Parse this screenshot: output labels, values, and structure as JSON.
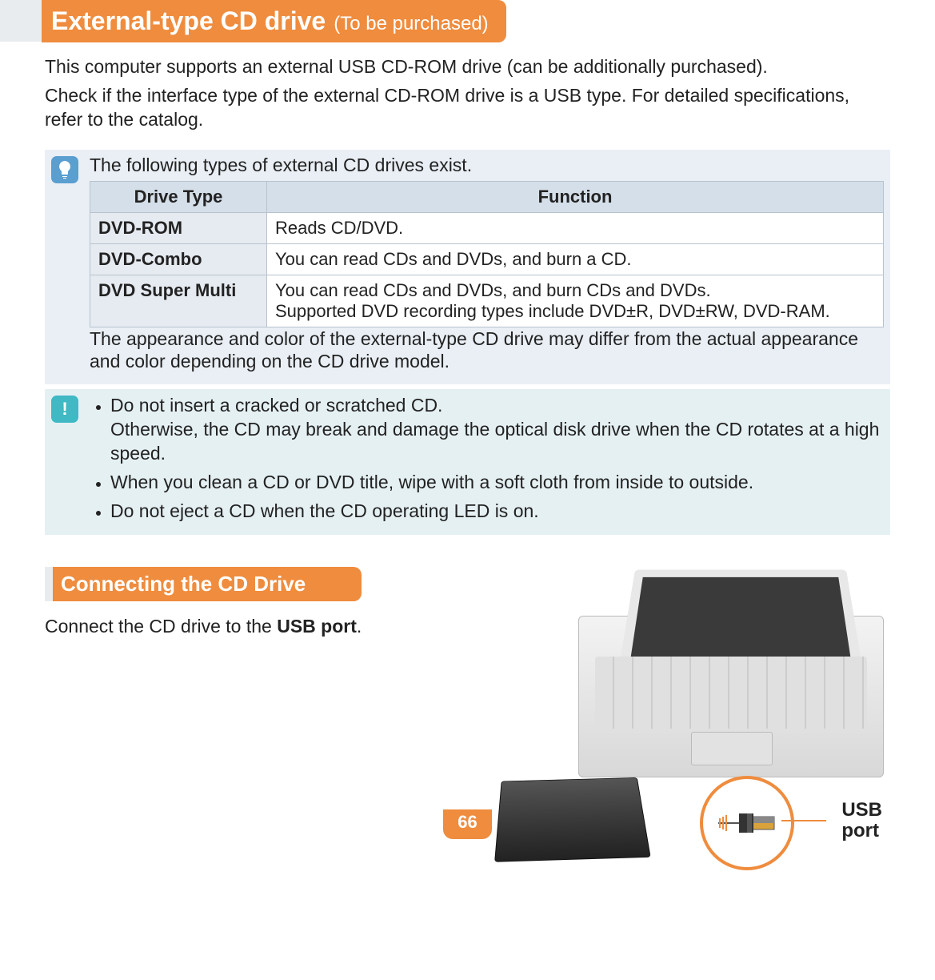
{
  "colors": {
    "accent": "#ef8c3e",
    "info_bg": "#e9eff5",
    "warn_bg": "#e5f0f3",
    "bulb_badge": "#5b9ed0",
    "warn_badge": "#40b9c4",
    "table_header_bg": "#d5dfe9",
    "table_type_bg": "#e6ebf1",
    "table_border": "#b8c3ce",
    "inactive_bar": "#e8ecef",
    "text": "#222222"
  },
  "header": {
    "title": "External-type CD drive",
    "subtitle": "(To be purchased)"
  },
  "intro": {
    "p1": "This computer supports an external USB CD-ROM drive (can be additionally purchased).",
    "p2": "Check if the interface type of the external CD-ROM drive is a USB type. For detailed specifications, refer to the catalog."
  },
  "info": {
    "lead": "The following types of external CD drives exist.",
    "table": {
      "columns": [
        "Drive Type",
        "Function"
      ],
      "rows": [
        {
          "type": "DVD-ROM",
          "func": "Reads CD/DVD."
        },
        {
          "type": "DVD-Combo",
          "func": "You can read CDs and DVDs, and burn a CD."
        },
        {
          "type": "DVD Super Multi",
          "func": "You can read CDs and DVDs, and burn CDs and DVDs.\nSupported DVD recording types include DVD±R, DVD±RW, DVD-RAM."
        }
      ]
    },
    "note": "The appearance and color of the external-type CD drive may differ from the actual appearance and color depending on the CD drive model."
  },
  "warnings": {
    "items": [
      "Do not insert a cracked or scratched CD.\nOtherwise, the CD may break and damage the optical disk drive when the CD rotates at a high speed.",
      "When you clean a CD or DVD title, wipe with a soft cloth from inside to outside.",
      "Do not eject a CD when the CD operating LED is on."
    ]
  },
  "section2": {
    "heading": "Connecting the CD Drive",
    "text_prefix": "Connect the CD drive to the ",
    "text_bold": "USB port",
    "text_suffix": ".",
    "callout_label": "USB port"
  },
  "page_number": "66"
}
